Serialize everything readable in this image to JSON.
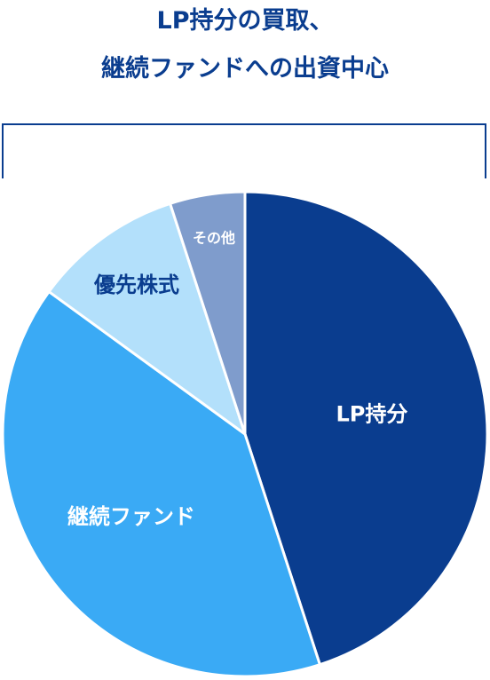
{
  "header": {
    "title_line1": "LP持分の買取、",
    "title_line2": "継続ファンドへの出資中心"
  },
  "chart_data": {
    "type": "pie",
    "title": "LP持分の買取、継続ファンドへの出資中心",
    "start": "top",
    "direction": "clockwise",
    "slices": [
      {
        "label": "LP持分",
        "value": 45,
        "color": "#0a3d8f",
        "label_color": "#ffffff"
      },
      {
        "label": "継続ファンド",
        "value": 40,
        "color": "#3aaaf5",
        "label_color": "#ffffff"
      },
      {
        "label": "優先株式",
        "value": 10,
        "color": "#b3e0fb",
        "label_color": "#0a3d8f"
      },
      {
        "label": "その他",
        "value": 5,
        "color": "#7f9ccc",
        "label_color": "#ffffff"
      }
    ]
  }
}
